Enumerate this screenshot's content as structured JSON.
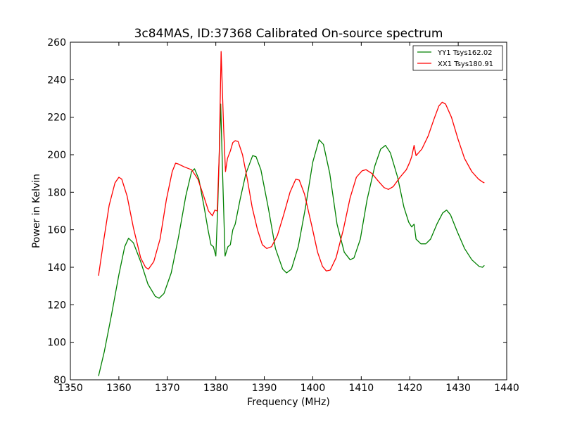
{
  "chart_data": {
    "type": "line",
    "title": "3c84MAS, ID:37368 Calibrated On-source spectrum",
    "xlabel": "Frequency (MHz)",
    "ylabel": "Power in Kelvin",
    "xlim": [
      1350,
      1440
    ],
    "ylim": [
      80,
      260
    ],
    "xticks": [
      1350,
      1360,
      1370,
      1380,
      1390,
      1400,
      1410,
      1420,
      1430,
      1440
    ],
    "yticks": [
      80,
      100,
      120,
      140,
      160,
      180,
      200,
      220,
      240,
      260
    ],
    "grid": false,
    "legend_position": "top-right",
    "series": [
      {
        "name": "YY1 Tsys162.02",
        "color": "#008000",
        "points": [
          [
            1355.8,
            82
          ],
          [
            1357.0,
            95
          ],
          [
            1358.5,
            115
          ],
          [
            1360.0,
            136
          ],
          [
            1361.2,
            151
          ],
          [
            1362.0,
            155.5
          ],
          [
            1363.0,
            153
          ],
          [
            1364.5,
            143
          ],
          [
            1366.0,
            131
          ],
          [
            1367.5,
            124.5
          ],
          [
            1368.3,
            123.5
          ],
          [
            1369.3,
            126
          ],
          [
            1370.8,
            137
          ],
          [
            1372.3,
            156
          ],
          [
            1373.8,
            178
          ],
          [
            1375.0,
            191
          ],
          [
            1375.6,
            192.5
          ],
          [
            1376.5,
            187
          ],
          [
            1377.6,
            172
          ],
          [
            1378.4,
            160
          ],
          [
            1379.0,
            152
          ],
          [
            1379.5,
            151
          ],
          [
            1380.0,
            146
          ],
          [
            1380.4,
            172
          ],
          [
            1381.0,
            227
          ],
          [
            1381.4,
            190
          ],
          [
            1381.9,
            146
          ],
          [
            1382.5,
            151
          ],
          [
            1383.0,
            152
          ],
          [
            1383.5,
            160
          ],
          [
            1384.0,
            163
          ],
          [
            1385.0,
            176
          ],
          [
            1386.2,
            190
          ],
          [
            1387.6,
            199.5
          ],
          [
            1388.3,
            199
          ],
          [
            1389.3,
            192
          ],
          [
            1390.8,
            172
          ],
          [
            1392.3,
            150
          ],
          [
            1393.8,
            139
          ],
          [
            1394.6,
            137
          ],
          [
            1395.6,
            139
          ],
          [
            1397.0,
            151
          ],
          [
            1398.5,
            172
          ],
          [
            1400.0,
            196
          ],
          [
            1401.3,
            208
          ],
          [
            1402.2,
            205.5
          ],
          [
            1403.5,
            190
          ],
          [
            1405.0,
            163
          ],
          [
            1406.5,
            148
          ],
          [
            1407.7,
            144
          ],
          [
            1408.5,
            145
          ],
          [
            1409.8,
            155
          ],
          [
            1411.2,
            176
          ],
          [
            1412.8,
            194
          ],
          [
            1414.0,
            203
          ],
          [
            1415.0,
            205
          ],
          [
            1416.0,
            201
          ],
          [
            1417.5,
            188
          ],
          [
            1418.8,
            172
          ],
          [
            1419.8,
            164
          ],
          [
            1420.4,
            161.5
          ],
          [
            1420.9,
            163
          ],
          [
            1421.3,
            155
          ],
          [
            1422.3,
            152.5
          ],
          [
            1423.3,
            152.5
          ],
          [
            1424.3,
            155
          ],
          [
            1425.6,
            163
          ],
          [
            1426.8,
            169
          ],
          [
            1427.6,
            170.5
          ],
          [
            1428.4,
            168
          ],
          [
            1429.8,
            159
          ],
          [
            1431.3,
            150
          ],
          [
            1432.8,
            144
          ],
          [
            1434.3,
            140.5
          ],
          [
            1435.0,
            140
          ],
          [
            1435.4,
            141
          ]
        ]
      },
      {
        "name": "XX1 Tsys180.91",
        "color": "#ff0000",
        "points": [
          [
            1355.8,
            135.5
          ],
          [
            1356.8,
            153
          ],
          [
            1358.0,
            173
          ],
          [
            1359.2,
            185
          ],
          [
            1360.0,
            188
          ],
          [
            1360.6,
            187
          ],
          [
            1361.7,
            178
          ],
          [
            1363.0,
            161
          ],
          [
            1364.5,
            145
          ],
          [
            1365.5,
            140
          ],
          [
            1366.1,
            139
          ],
          [
            1367.2,
            143
          ],
          [
            1368.5,
            155
          ],
          [
            1369.8,
            176
          ],
          [
            1371.0,
            191
          ],
          [
            1371.7,
            195.5
          ],
          [
            1372.3,
            195
          ],
          [
            1373.5,
            193.5
          ],
          [
            1375.0,
            192
          ],
          [
            1376.3,
            187
          ],
          [
            1377.5,
            178
          ],
          [
            1378.5,
            170
          ],
          [
            1379.3,
            167.5
          ],
          [
            1379.8,
            170.5
          ],
          [
            1380.3,
            170
          ],
          [
            1380.7,
            200
          ],
          [
            1381.1,
            255
          ],
          [
            1381.6,
            215
          ],
          [
            1382.0,
            191
          ],
          [
            1382.4,
            198
          ],
          [
            1383.0,
            202
          ],
          [
            1383.5,
            206.5
          ],
          [
            1384.0,
            207.5
          ],
          [
            1384.6,
            207
          ],
          [
            1385.5,
            200
          ],
          [
            1386.5,
            187
          ],
          [
            1387.5,
            172
          ],
          [
            1388.6,
            160
          ],
          [
            1389.6,
            152
          ],
          [
            1390.5,
            150
          ],
          [
            1391.5,
            151
          ],
          [
            1392.7,
            157
          ],
          [
            1394.0,
            168
          ],
          [
            1395.3,
            180
          ],
          [
            1396.5,
            187
          ],
          [
            1397.2,
            186.5
          ],
          [
            1398.3,
            179
          ],
          [
            1399.8,
            162
          ],
          [
            1401.0,
            148
          ],
          [
            1402.0,
            140.5
          ],
          [
            1402.8,
            138
          ],
          [
            1403.6,
            138.5
          ],
          [
            1404.8,
            145
          ],
          [
            1406.3,
            160
          ],
          [
            1407.7,
            177
          ],
          [
            1409.0,
            188
          ],
          [
            1410.2,
            191.5
          ],
          [
            1411.0,
            192
          ],
          [
            1412.2,
            190
          ],
          [
            1413.5,
            186
          ],
          [
            1414.7,
            182.5
          ],
          [
            1415.6,
            181.5
          ],
          [
            1416.6,
            183
          ],
          [
            1418.0,
            188
          ],
          [
            1419.3,
            192
          ],
          [
            1420.0,
            196
          ],
          [
            1420.4,
            199
          ],
          [
            1420.9,
            205
          ],
          [
            1421.3,
            199.5
          ],
          [
            1422.5,
            203
          ],
          [
            1423.8,
            210
          ],
          [
            1425.0,
            219
          ],
          [
            1426.0,
            226
          ],
          [
            1426.7,
            228
          ],
          [
            1427.4,
            227
          ],
          [
            1428.6,
            220
          ],
          [
            1430.0,
            208
          ],
          [
            1431.3,
            198
          ],
          [
            1432.8,
            191
          ],
          [
            1434.2,
            187
          ],
          [
            1435.0,
            185.5
          ],
          [
            1435.4,
            185
          ]
        ]
      }
    ]
  }
}
